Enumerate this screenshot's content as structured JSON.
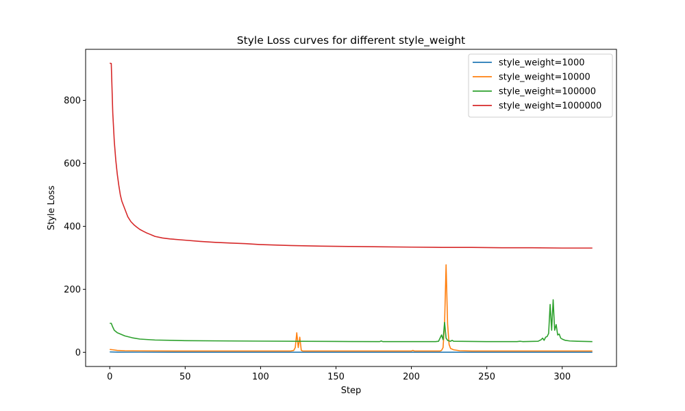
{
  "chart_data": {
    "type": "line",
    "title": "Style Loss curves for different style_weight",
    "xlabel": "Step",
    "ylabel": "Style Loss",
    "xlim": [
      -16,
      336
    ],
    "ylim": [
      -45,
      962
    ],
    "xticks": [
      0,
      50,
      100,
      150,
      200,
      250,
      300
    ],
    "yticks": [
      0,
      200,
      400,
      600,
      800
    ],
    "legend_position": "top-right",
    "grid": false,
    "series": [
      {
        "name": "style_weight=1000",
        "color": "#1f77b4",
        "points": [
          [
            0,
            1.2
          ],
          [
            5,
            0.6
          ],
          [
            20,
            0.4
          ],
          [
            100,
            0.3
          ],
          [
            200,
            0.3
          ],
          [
            320,
            0.3
          ]
        ]
      },
      {
        "name": "style_weight=10000",
        "color": "#ff7f0e",
        "points": [
          [
            0,
            9
          ],
          [
            2,
            8
          ],
          [
            5,
            6
          ],
          [
            10,
            5
          ],
          [
            20,
            4.5
          ],
          [
            50,
            4
          ],
          [
            100,
            4
          ],
          [
            120,
            4
          ],
          [
            122,
            6
          ],
          [
            123,
            15
          ],
          [
            124,
            62
          ],
          [
            125,
            15
          ],
          [
            126,
            48
          ],
          [
            127,
            6
          ],
          [
            128,
            4
          ],
          [
            150,
            4
          ],
          [
            200,
            4
          ],
          [
            201,
            6
          ],
          [
            202,
            4
          ],
          [
            219,
            4
          ],
          [
            220,
            6
          ],
          [
            221,
            15
          ],
          [
            222,
            90
          ],
          [
            223,
            278
          ],
          [
            224,
            90
          ],
          [
            225,
            25
          ],
          [
            226,
            12
          ],
          [
            228,
            8
          ],
          [
            232,
            5
          ],
          [
            240,
            4
          ],
          [
            280,
            4
          ],
          [
            320,
            4
          ]
        ]
      },
      {
        "name": "style_weight=100000",
        "color": "#2ca02c",
        "points": [
          [
            0,
            92
          ],
          [
            1,
            92
          ],
          [
            2,
            80
          ],
          [
            3,
            70
          ],
          [
            5,
            62
          ],
          [
            10,
            52
          ],
          [
            15,
            46
          ],
          [
            20,
            42
          ],
          [
            30,
            39
          ],
          [
            50,
            37
          ],
          [
            80,
            36
          ],
          [
            100,
            35.5
          ],
          [
            150,
            34.5
          ],
          [
            179,
            34
          ],
          [
            180,
            36
          ],
          [
            181,
            34
          ],
          [
            200,
            34
          ],
          [
            216,
            34
          ],
          [
            218,
            35
          ],
          [
            219,
            45
          ],
          [
            220,
            55
          ],
          [
            221,
            40
          ],
          [
            222,
            95
          ],
          [
            223,
            45
          ],
          [
            224,
            38
          ],
          [
            225,
            36
          ],
          [
            226,
            35
          ],
          [
            227,
            38
          ],
          [
            228,
            35
          ],
          [
            250,
            34
          ],
          [
            270,
            34
          ],
          [
            272,
            35
          ],
          [
            274,
            34
          ],
          [
            284,
            35
          ],
          [
            286,
            40
          ],
          [
            287,
            45
          ],
          [
            288,
            38
          ],
          [
            289,
            48
          ],
          [
            290,
            50
          ],
          [
            291,
            60
          ],
          [
            292,
            152
          ],
          [
            293,
            70
          ],
          [
            294,
            167
          ],
          [
            295,
            70
          ],
          [
            296,
            88
          ],
          [
            297,
            55
          ],
          [
            298,
            58
          ],
          [
            299,
            45
          ],
          [
            300,
            42
          ],
          [
            302,
            38
          ],
          [
            305,
            36
          ],
          [
            310,
            35
          ],
          [
            320,
            34
          ]
        ]
      },
      {
        "name": "style_weight=1000000",
        "color": "#d62728",
        "points": [
          [
            0,
            918
          ],
          [
            1,
            917
          ],
          [
            2,
            760
          ],
          [
            3,
            670
          ],
          [
            4,
            610
          ],
          [
            5,
            565
          ],
          [
            6,
            530
          ],
          [
            7,
            500
          ],
          [
            8,
            480
          ],
          [
            10,
            455
          ],
          [
            12,
            430
          ],
          [
            14,
            415
          ],
          [
            16,
            405
          ],
          [
            18,
            397
          ],
          [
            20,
            390
          ],
          [
            22,
            385
          ],
          [
            24,
            380
          ],
          [
            26,
            376
          ],
          [
            28,
            372
          ],
          [
            30,
            368
          ],
          [
            35,
            363
          ],
          [
            40,
            360
          ],
          [
            50,
            356
          ],
          [
            60,
            352
          ],
          [
            70,
            349
          ],
          [
            80,
            347
          ],
          [
            90,
            345
          ],
          [
            100,
            342
          ],
          [
            120,
            339
          ],
          [
            140,
            337
          ],
          [
            160,
            336
          ],
          [
            180,
            335
          ],
          [
            200,
            334
          ],
          [
            220,
            333
          ],
          [
            240,
            333
          ],
          [
            260,
            332
          ],
          [
            280,
            332
          ],
          [
            300,
            331
          ],
          [
            320,
            331
          ]
        ]
      }
    ]
  }
}
